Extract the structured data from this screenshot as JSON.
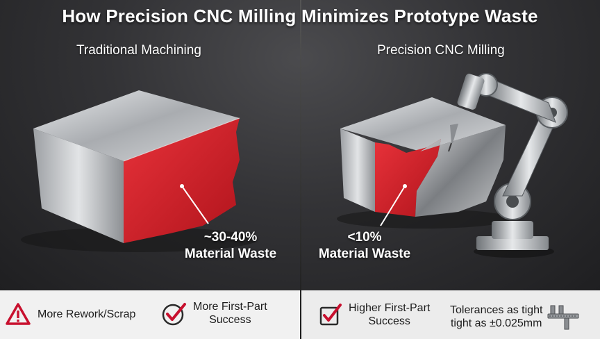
{
  "header": {
    "title": "How Precision CNC Milling Minimizes Prototype Waste"
  },
  "panels": {
    "left": {
      "title": "Traditional Machining",
      "waste_value": "~30-40%",
      "waste_label": "Material Waste"
    },
    "right": {
      "title": "Precision CNC Milling",
      "waste_value": "<10%",
      "waste_label": "Material Waste"
    }
  },
  "footer": {
    "left": [
      {
        "icon": "warning-triangle-icon",
        "text": "More Rework/Scrap"
      },
      {
        "icon": "check-circle-icon",
        "line1": "More First-Part",
        "line2": "Success"
      }
    ],
    "right": [
      {
        "icon": "check-box-icon",
        "line1": "Higher First-Part",
        "line2": "Success"
      },
      {
        "icon": "caliper-icon",
        "line1": "Tolerances as tight",
        "line2": "tight as ±0.025mm"
      }
    ]
  },
  "colors": {
    "waste_red": "#d4202a",
    "accent_red": "#c8102e",
    "steel": "#b9bcbf"
  }
}
